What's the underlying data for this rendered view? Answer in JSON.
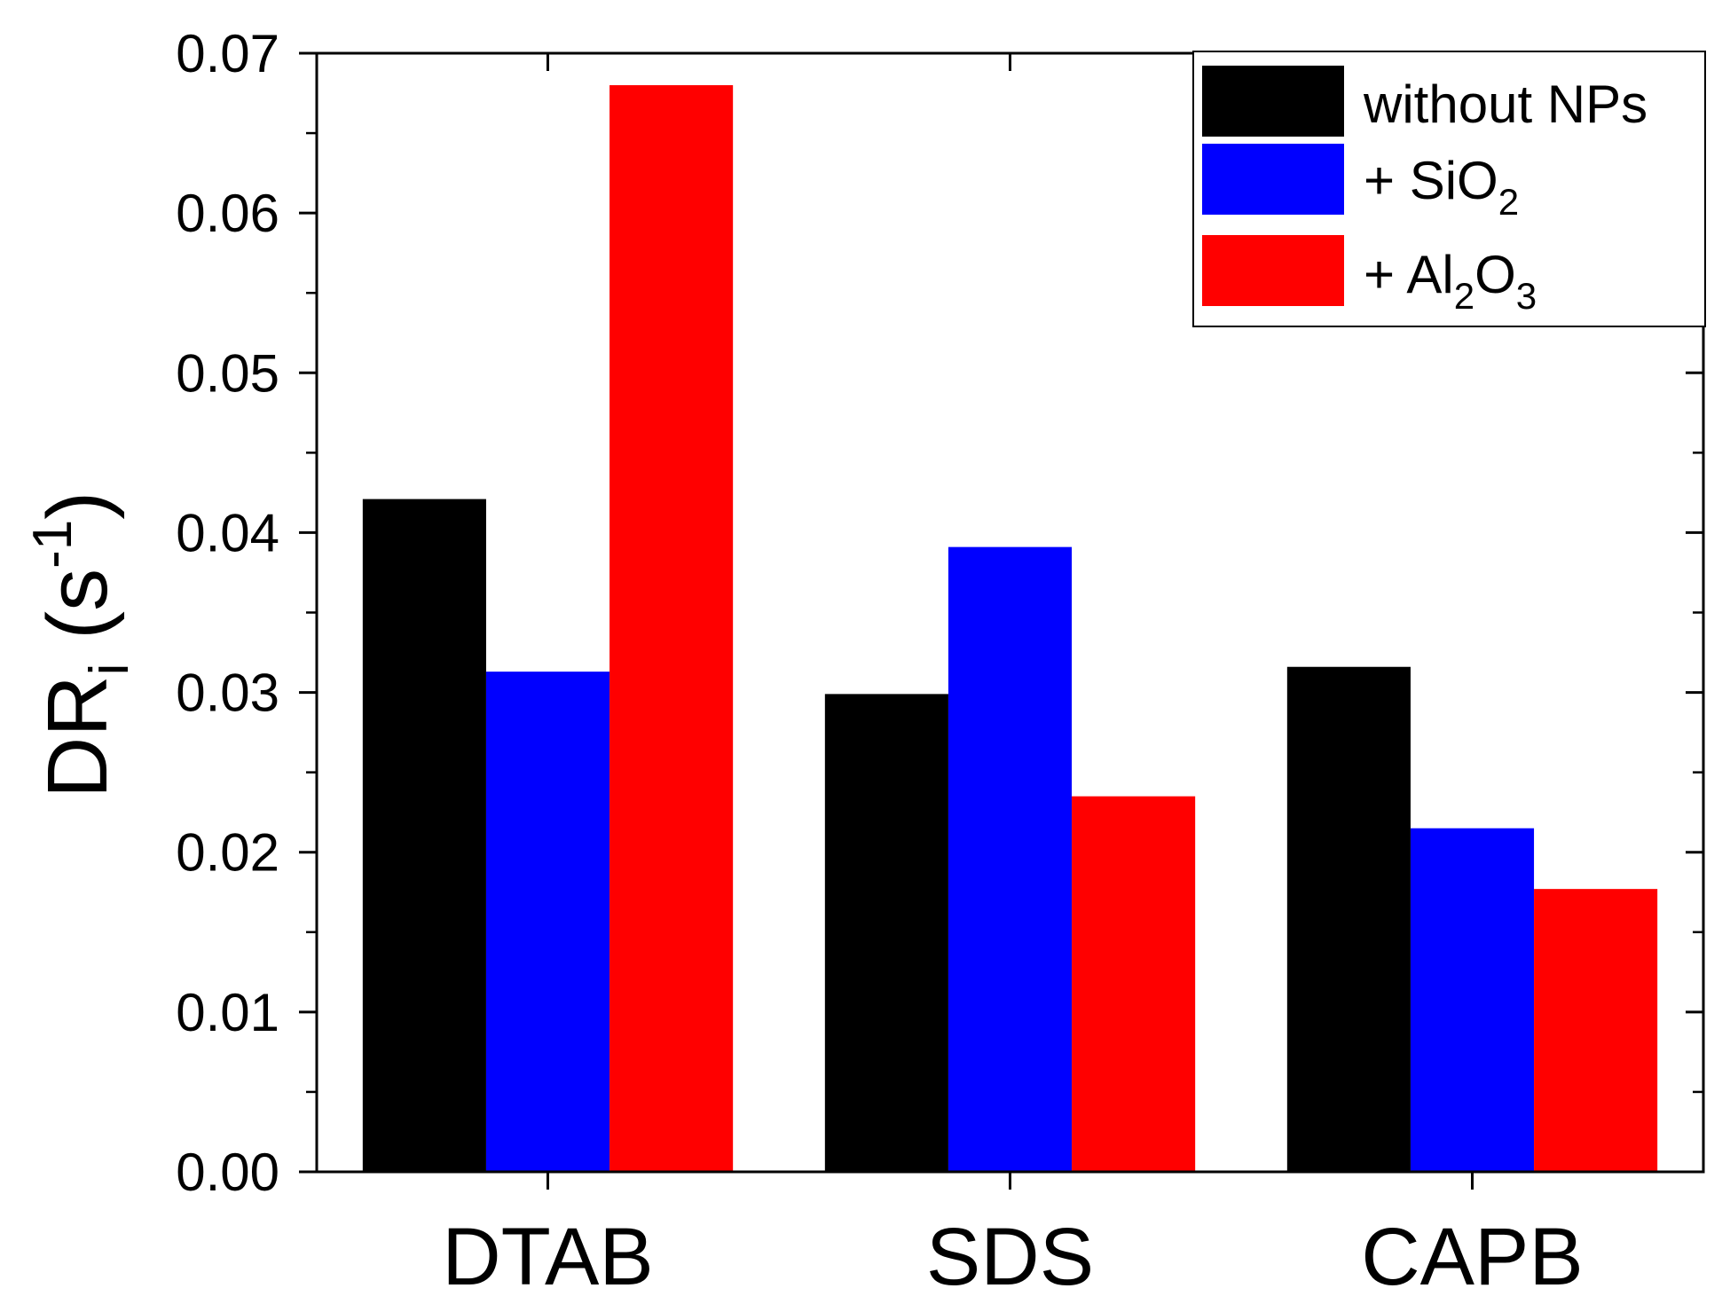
{
  "chart_data": {
    "type": "bar",
    "title": "",
    "xlabel": "",
    "ylabel": {
      "main": "DR",
      "subscript": "i",
      "unit_open": " (s",
      "unit_exponent": "-1",
      "unit_close": ")"
    },
    "categories": [
      "DTAB",
      "SDS",
      "CAPB"
    ],
    "series": [
      {
        "name": "without NPs",
        "legend": {
          "text": "without NPs"
        },
        "color": "#000000",
        "values": [
          0.0421,
          0.0299,
          0.0316
        ]
      },
      {
        "name": "+ SiO2",
        "legend": {
          "prefix": "+ SiO",
          "sub1": "2"
        },
        "color": "#0000ff",
        "values": [
          0.0313,
          0.0391,
          0.0215
        ]
      },
      {
        "name": "+ Al2O3",
        "legend": {
          "prefix": "+ Al",
          "sub1": "2",
          "mid": "O",
          "sub2": "3"
        },
        "color": "#ff0000",
        "values": [
          0.068,
          0.0235,
          0.0177
        ]
      }
    ],
    "ylim": [
      0,
      0.07
    ],
    "yticks": [
      "0.00",
      "0.01",
      "0.02",
      "0.03",
      "0.04",
      "0.05",
      "0.06",
      "0.07"
    ],
    "yminor_step": 0.005,
    "grid": false,
    "legend_position": "top-right"
  }
}
